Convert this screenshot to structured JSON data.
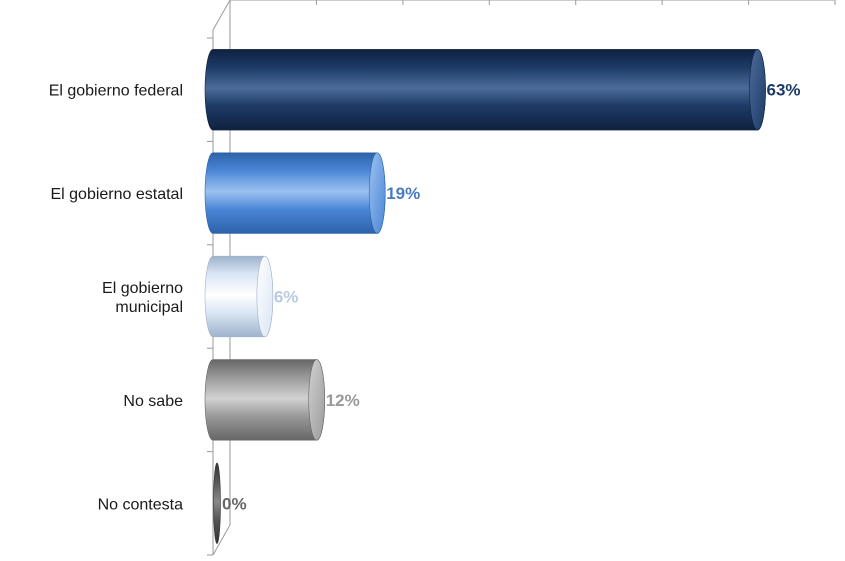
{
  "chart_data": {
    "type": "bar",
    "orientation": "horizontal",
    "style": "3d-cylinder",
    "categories": [
      [
        "El gobierno federal"
      ],
      [
        "El gobierno estatal"
      ],
      [
        "El gobierno",
        "municipal"
      ],
      [
        "No sabe"
      ],
      [
        "No contesta"
      ]
    ],
    "values": [
      63,
      19,
      6,
      12,
      0
    ],
    "value_labels": [
      "63%",
      "19%",
      "6%",
      "12%",
      "0%"
    ],
    "xlim": [
      0,
      70
    ],
    "grid": false,
    "legend": "none",
    "title": "",
    "xlabel": "",
    "ylabel": "",
    "colors": {
      "bars": [
        {
          "base": "#1d3a66",
          "light": "#4d6c9a",
          "dark": "#0f2140",
          "label": "#1d3a66"
        },
        {
          "base": "#4a86d6",
          "light": "#9cc2f0",
          "dark": "#2d62aa",
          "label": "#4a7bc2"
        },
        {
          "base": "#d9e6f5",
          "light": "#ffffff",
          "dark": "#9fb3cc",
          "label": "#b9cbe0"
        },
        {
          "base": "#9a9a9a",
          "light": "#d2d2d2",
          "dark": "#666666",
          "label": "#9a9a9a"
        },
        {
          "base": "#555555",
          "light": "#888888",
          "dark": "#333333",
          "label": "#666666"
        }
      ],
      "axis": "#9a9a9a"
    }
  }
}
